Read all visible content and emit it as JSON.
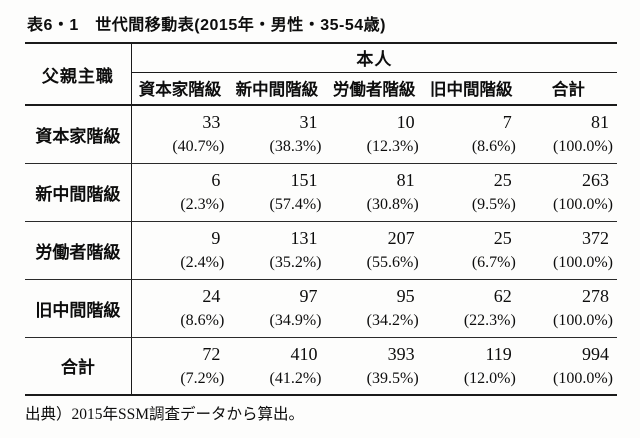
{
  "page": {
    "title": "表6・1　世代間移動表(2015年・男性・35-54歳)",
    "source_note": "出典）2015年SSM調査データから算出。"
  },
  "table": {
    "corner_header": "父親主職",
    "group_header": "本人",
    "columns": [
      "資本家階級",
      "新中間階級",
      "労働者階級",
      "旧中間階級",
      "合計"
    ],
    "rows": [
      {
        "label": "資本家階級",
        "cells": [
          {
            "count": "33",
            "pct": "(40.7%)"
          },
          {
            "count": "31",
            "pct": "(38.3%)"
          },
          {
            "count": "10",
            "pct": "(12.3%)"
          },
          {
            "count": "7",
            "pct": "(8.6%)"
          },
          {
            "count": "81",
            "pct": "(100.0%)"
          }
        ]
      },
      {
        "label": "新中間階級",
        "cells": [
          {
            "count": "6",
            "pct": "(2.3%)"
          },
          {
            "count": "151",
            "pct": "(57.4%)"
          },
          {
            "count": "81",
            "pct": "(30.8%)"
          },
          {
            "count": "25",
            "pct": "(9.5%)"
          },
          {
            "count": "263",
            "pct": "(100.0%)"
          }
        ]
      },
      {
        "label": "労働者階級",
        "cells": [
          {
            "count": "9",
            "pct": "(2.4%)"
          },
          {
            "count": "131",
            "pct": "(35.2%)"
          },
          {
            "count": "207",
            "pct": "(55.6%)"
          },
          {
            "count": "25",
            "pct": "(6.7%)"
          },
          {
            "count": "372",
            "pct": "(100.0%)"
          }
        ]
      },
      {
        "label": "旧中間階級",
        "cells": [
          {
            "count": "24",
            "pct": "(8.6%)"
          },
          {
            "count": "97",
            "pct": "(34.9%)"
          },
          {
            "count": "95",
            "pct": "(34.2%)"
          },
          {
            "count": "62",
            "pct": "(22.3%)"
          },
          {
            "count": "278",
            "pct": "(100.0%)"
          }
        ]
      },
      {
        "label": "合計",
        "cells": [
          {
            "count": "72",
            "pct": "(7.2%)"
          },
          {
            "count": "410",
            "pct": "(41.2%)"
          },
          {
            "count": "393",
            "pct": "(39.5%)"
          },
          {
            "count": "119",
            "pct": "(12.0%)"
          },
          {
            "count": "994",
            "pct": "(100.0%)"
          }
        ]
      }
    ]
  }
}
